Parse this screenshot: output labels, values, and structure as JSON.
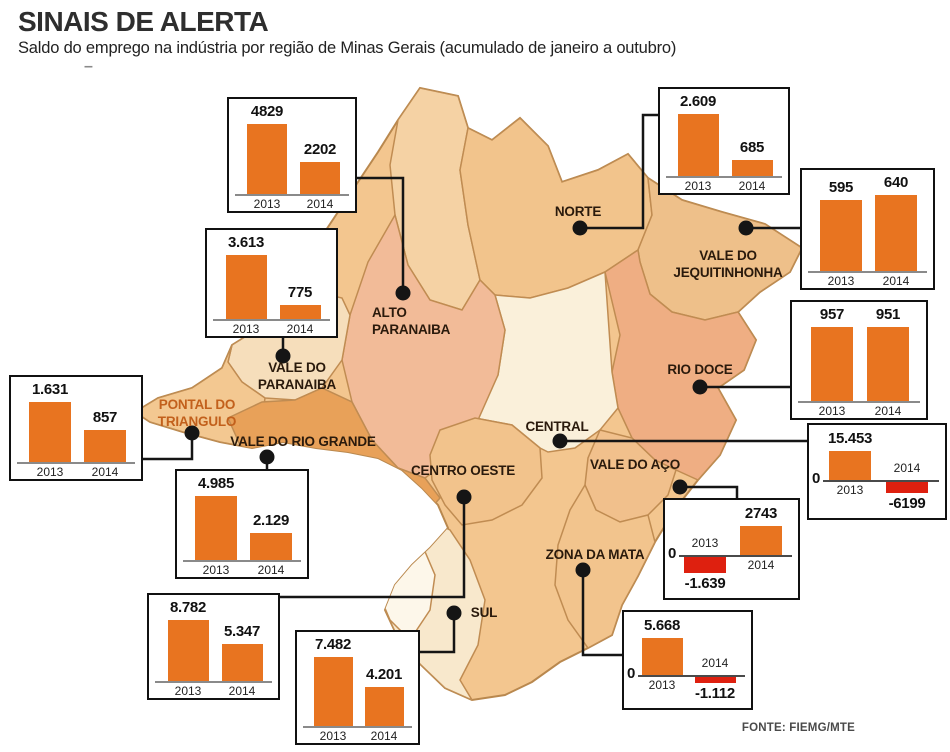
{
  "header": {
    "title": "SINAIS DE ALERTA",
    "subtitle": "Saldo do emprego na indústria por região de Minas Gerais (acumulado de janeiro a outubro)",
    "dash": "–"
  },
  "source": "FONTE: FIEMG/MTE",
  "colors": {
    "bar_positive": "#e87420",
    "bar_negative": "#de200f",
    "map_base": "#f3c68f",
    "map_border": "#b9884e",
    "connector": "#151515",
    "label_dark": "#2a1a0c",
    "label_orange": "#c2601c"
  },
  "map_labels": [
    {
      "id": "norte",
      "lines": "NORTE"
    },
    {
      "id": "vale-do-jequitinhonha",
      "lines": "VALE DO\nJEQUITINHONHA"
    },
    {
      "id": "alto-paranaiba",
      "lines": "ALTO\nPARANAIBA"
    },
    {
      "id": "vale-do-paranaiba",
      "lines": "VALE DO\nPARANAIBA"
    },
    {
      "id": "pontal-do-triangulo",
      "lines": "PONTAL DO\nTRIANGULO"
    },
    {
      "id": "vale-do-rio-grande",
      "lines": "VALE DO RIO GRANDE"
    },
    {
      "id": "centro-oeste",
      "lines": "CENTRO OESTE"
    },
    {
      "id": "central",
      "lines": "CENTRAL"
    },
    {
      "id": "rio-doce",
      "lines": "RIO DOCE"
    },
    {
      "id": "vale-do-aco",
      "lines": "VALE DO AÇO"
    },
    {
      "id": "zona-da-mata",
      "lines": "ZONA DA MATA"
    },
    {
      "id": "sul",
      "lines": "SUL"
    }
  ],
  "chart_data": {
    "type": "bar",
    "title": "SINAIS DE ALERTA",
    "subtitle": "Saldo do emprego na indústria por região de Minas Gerais (acumulado de janeiro a outubro)",
    "categories": [
      "2013",
      "2014"
    ],
    "zero_label": "0",
    "legend_position": "none",
    "grid": false,
    "series": [
      {
        "name": "Alto Paranaiba",
        "values": [
          4829,
          2202
        ],
        "display": [
          "4829",
          "2202"
        ]
      },
      {
        "name": "Vale do Paranaiba",
        "values": [
          3613,
          775
        ],
        "display": [
          "3.613",
          "775"
        ]
      },
      {
        "name": "Pontal do Triangulo",
        "values": [
          1631,
          857
        ],
        "display": [
          "1.631",
          "857"
        ]
      },
      {
        "name": "Vale do Rio Grande",
        "values": [
          4985,
          2129
        ],
        "display": [
          "4.985",
          "2.129"
        ]
      },
      {
        "name": "Centro Oeste",
        "values": [
          8782,
          5347
        ],
        "display": [
          "8.782",
          "5.347"
        ]
      },
      {
        "name": "Sul",
        "values": [
          7482,
          4201
        ],
        "display": [
          "7.482",
          "4.201"
        ]
      },
      {
        "name": "Norte",
        "values": [
          2609,
          685
        ],
        "display": [
          "2.609",
          "685"
        ]
      },
      {
        "name": "Vale do Jequitinhonha",
        "values": [
          595,
          640
        ],
        "display": [
          "595",
          "640"
        ]
      },
      {
        "name": "Rio Doce",
        "values": [
          957,
          951
        ],
        "display": [
          "957",
          "951"
        ]
      },
      {
        "name": "Central",
        "values": [
          15453,
          -6199
        ],
        "display": [
          "15.453",
          "-6199"
        ]
      },
      {
        "name": "Vale do Aço",
        "values": [
          -1639,
          2743
        ],
        "display": [
          "-1.639",
          "2743"
        ]
      },
      {
        "name": "Zona da Mata",
        "values": [
          5668,
          -1112
        ],
        "display": [
          "5.668",
          "-1.112"
        ]
      }
    ],
    "source": "FONTE: FIEMG/MTE"
  }
}
